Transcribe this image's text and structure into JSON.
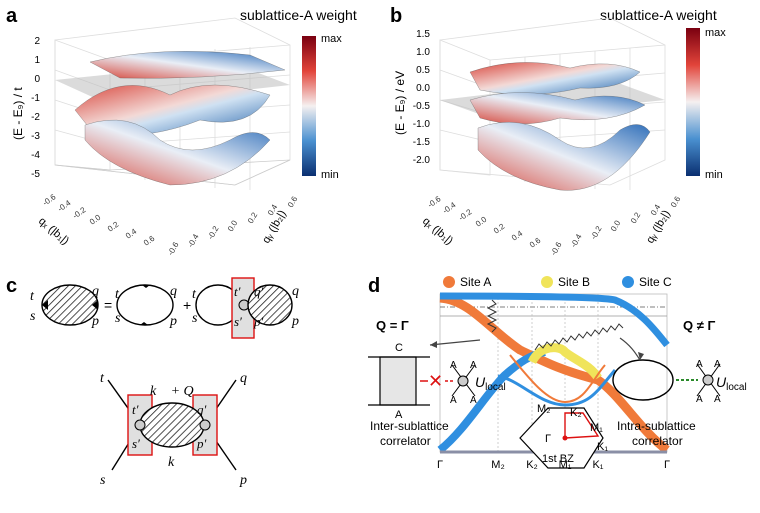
{
  "panels": {
    "a": {
      "letter": "a",
      "title": "sublattice-A weight",
      "zlabel": "(E - E₉) / t",
      "zticks": [
        "2",
        "1",
        "0",
        "-1",
        "-2",
        "-3",
        "-4",
        "-5"
      ],
      "colorbar": {
        "max": "max",
        "min": "min"
      },
      "xticks": [
        "-0.6",
        "-0.4",
        "-0.2",
        "0.0",
        "0.2",
        "0.4",
        "0.6"
      ],
      "yticks": [
        "-0.6",
        "-0.4",
        "-0.2",
        "0.0",
        "0.2",
        "0.4",
        "0.6"
      ],
      "xlabel": "qₓ (|b₁|)",
      "ylabel": "qᵧ (|b₂|)"
    },
    "b": {
      "letter": "b",
      "title": "sublattice-A weight",
      "zlabel": "(E - E₉) / eV",
      "zticks": [
        "1.5",
        "1.0",
        "0.5",
        "0.0",
        "-0.5",
        "-1.0",
        "-1.5",
        "-2.0"
      ],
      "colorbar": {
        "max": "max",
        "min": "min"
      },
      "xticks": [
        "-0.6",
        "-0.4",
        "-0.2",
        "0.0",
        "0.2",
        "0.4",
        "0.6"
      ],
      "yticks": [
        "-0.6",
        "-0.4",
        "-0.2",
        "0.0",
        "0.2",
        "0.4",
        "0.6"
      ],
      "xlabel": "qₓ (|b₁|)",
      "ylabel": "qᵧ (|b₂|)"
    },
    "c": {
      "letter": "c",
      "eq_equals": "=",
      "eq_plus1": "+",
      "eq_plus2": "+",
      "labels": {
        "t": "t",
        "s": "s",
        "q": "q",
        "p": "p",
        "tp": "t′",
        "sp": "s′",
        "qp": "q′",
        "pp": "p′",
        "kQ": "k⃗ + Q⃗",
        "k": "k⃗"
      }
    },
    "d": {
      "letter": "d",
      "legend": [
        "Site A",
        "Site B",
        "Site C"
      ],
      "legend_colors": [
        "#f07a3a",
        "#f0e45a",
        "#2f8fe0"
      ],
      "q_left": "Q = Γ",
      "q_right": "Q ≠ Γ",
      "left_caption": [
        "Inter-sublattice",
        "correlator"
      ],
      "right_caption": [
        "Intra-sublattice",
        "correlator"
      ],
      "u_local": "U",
      "u_sub": "local",
      "bz_label": "1st BZ",
      "bz_points": {
        "M2": "M₂",
        "K2": "K₂",
        "M1": "M₁",
        "K1": "K₁",
        "G": "Γ"
      },
      "kpath": [
        "Γ",
        "M₂",
        "K₂",
        "M₁",
        "K₁",
        "Γ"
      ],
      "box_top": "C",
      "box_bottom": "A",
      "site_A": "A"
    }
  }
}
